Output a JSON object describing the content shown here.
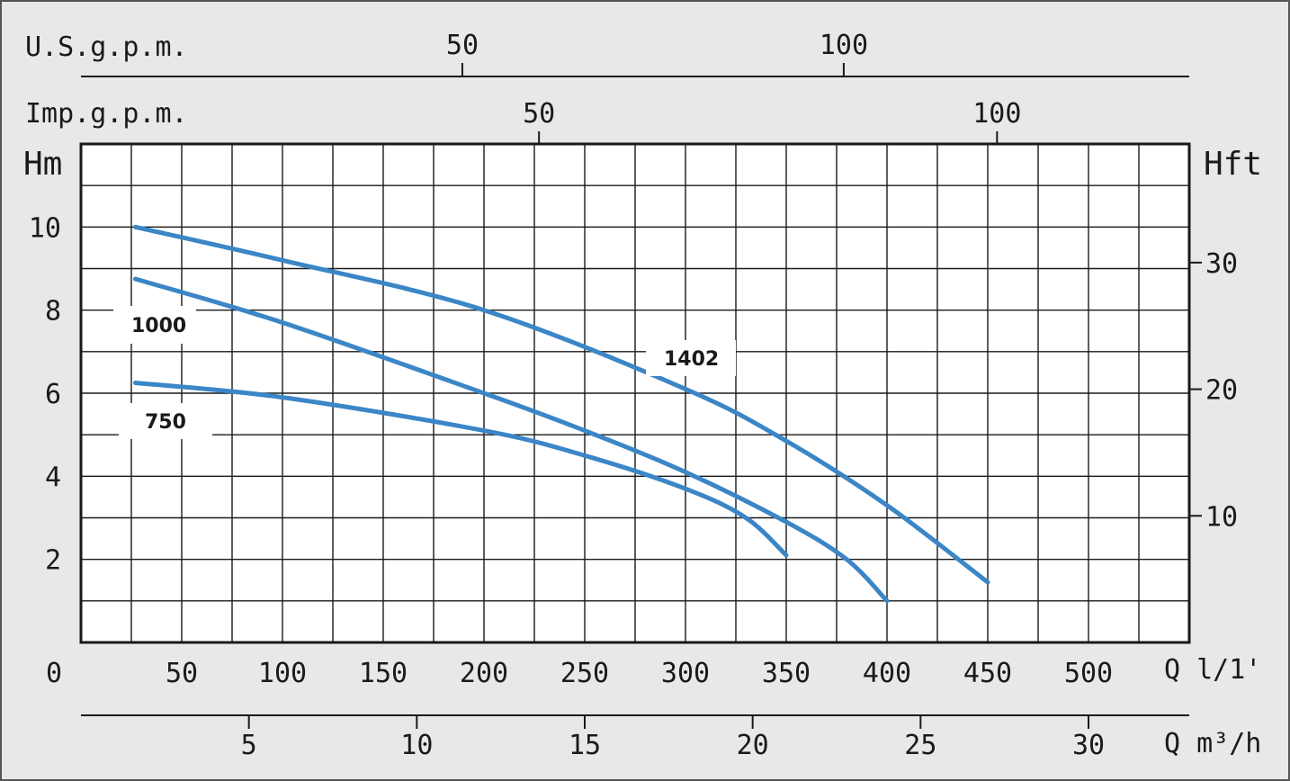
{
  "chart_data": {
    "type": "line",
    "x_unit_label": "Q l/1'",
    "x_ticks": [
      "0",
      "50",
      "100",
      "150",
      "200",
      "250",
      "300",
      "350",
      "400",
      "450",
      "500"
    ],
    "xlim": [
      0,
      550
    ],
    "y_label_left": "Hm",
    "y_ticks_left": [
      "2",
      "4",
      "6",
      "8",
      "10"
    ],
    "ylim": [
      0,
      12
    ],
    "y_label_right": "Hft",
    "y_ticks_right": [
      "10",
      "20",
      "30"
    ],
    "secondary_axes": {
      "usgpm": {
        "label": "U.S.g.p.m.",
        "ticks": [
          "50",
          "100"
        ]
      },
      "impgpm": {
        "label": "Imp.g.p.m.",
        "ticks": [
          "50",
          "100"
        ]
      },
      "m3h": {
        "label": "Q m³/h",
        "ticks": [
          "5",
          "10",
          "15",
          "20",
          "25",
          "30"
        ]
      }
    },
    "grid": true,
    "series": [
      {
        "name": "1402",
        "x": [
          27,
          100,
          200,
          300,
          350,
          400,
          450
        ],
        "y": [
          10.0,
          9.2,
          8.0,
          6.1,
          4.85,
          3.3,
          1.45
        ]
      },
      {
        "name": "1000",
        "x": [
          27,
          100,
          200,
          250,
          300,
          350,
          380,
          400
        ],
        "y": [
          8.75,
          7.7,
          6.0,
          5.1,
          4.1,
          2.9,
          2.0,
          1.0
        ]
      },
      {
        "name": "750",
        "x": [
          27,
          100,
          200,
          250,
          300,
          330,
          350
        ],
        "y": [
          6.25,
          5.9,
          5.1,
          4.5,
          3.7,
          3.0,
          2.1
        ]
      }
    ],
    "colors": {
      "curve": "#3b86c6",
      "axis": "#1a1a1a",
      "background": "#e7e8e9",
      "plot": "#ffffff"
    }
  }
}
